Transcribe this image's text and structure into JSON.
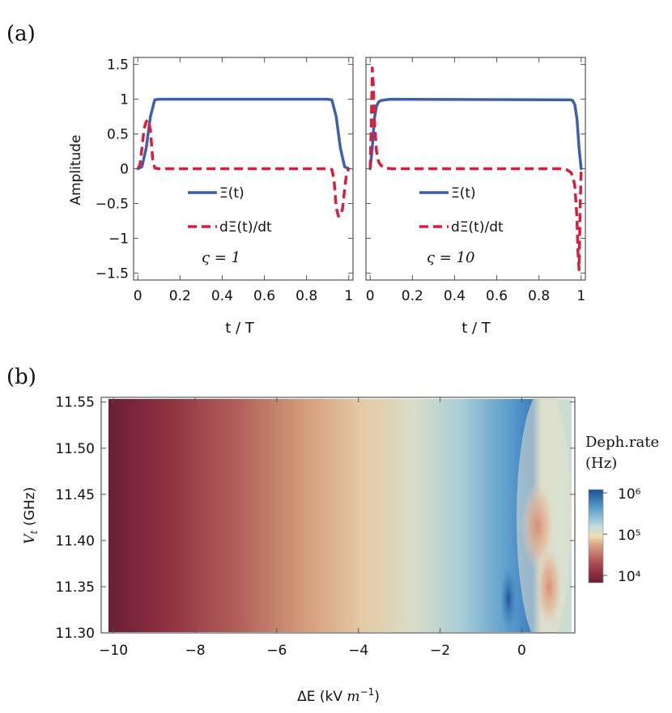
{
  "panel_labels": {
    "a": "(a)",
    "b": "(b)"
  },
  "chart_data": [
    {
      "type": "line",
      "panel": "(a) left",
      "xlabel": "t / T",
      "ylabel": "Amplitude",
      "xlim": [
        -0.02,
        1.02
      ],
      "ylim": [
        -1.6,
        1.6
      ],
      "x_ticks": [
        "0",
        "0.2",
        "0.4",
        "0.6",
        "0.8",
        "1"
      ],
      "y_ticks": [
        "1.5",
        "1",
        "0.5",
        "0",
        "−0.5",
        "−1",
        "−1.5"
      ],
      "annotation": "ς = 1",
      "legend_position": "center",
      "series": [
        {
          "name": "Ξ(t)",
          "color": "#3F5FAE",
          "style": "solid",
          "x": [
            0,
            0.02,
            0.04,
            0.06,
            0.08,
            0.1,
            0.9,
            0.92,
            0.94,
            0.96,
            0.98,
            1.0
          ],
          "y": [
            0,
            0.03,
            0.3,
            0.75,
            0.99,
            1.0,
            1.0,
            0.99,
            0.75,
            0.3,
            0.03,
            0
          ]
        },
        {
          "name": "dΞ(t)/dt",
          "color": "#D91E3D",
          "style": "dashed",
          "x": [
            0,
            0.01,
            0.02,
            0.03,
            0.04,
            0.05,
            0.06,
            0.07,
            0.08,
            0.1,
            0.9,
            0.92,
            0.93,
            0.94,
            0.95,
            0.96,
            0.97,
            0.98,
            0.99,
            1.0
          ],
          "y": [
            0,
            0.05,
            0.3,
            0.58,
            0.68,
            0.7,
            0.55,
            0.15,
            0.01,
            0,
            0,
            -0.01,
            -0.15,
            -0.55,
            -0.68,
            -0.68,
            -0.58,
            -0.3,
            -0.05,
            0
          ]
        }
      ]
    },
    {
      "type": "line",
      "panel": "(a) right",
      "xlabel": "t / T",
      "xlim": [
        -0.02,
        1.02
      ],
      "ylim": [
        -1.6,
        1.6
      ],
      "x_ticks": [
        "0",
        "0.2",
        "0.4",
        "0.6",
        "0.8",
        "1"
      ],
      "annotation": "ς = 10",
      "legend_position": "center",
      "series": [
        {
          "name": "Ξ(t)",
          "color": "#3F5FAE",
          "style": "solid",
          "x": [
            0,
            0.01,
            0.02,
            0.03,
            0.04,
            0.05,
            0.07,
            0.1,
            0.95,
            0.96,
            0.97,
            0.98,
            0.99,
            1.0
          ],
          "y": [
            0,
            0.3,
            0.72,
            0.9,
            0.96,
            0.98,
            0.99,
            1.0,
            0.99,
            0.98,
            0.92,
            0.72,
            0.3,
            0
          ]
        },
        {
          "name": "dΞ(t)/dt",
          "color": "#D91E3D",
          "style": "dashed",
          "x": [
            0,
            0.005,
            0.01,
            0.015,
            0.02,
            0.03,
            0.04,
            0.05,
            0.07,
            0.1,
            0.9,
            0.93,
            0.95,
            0.96,
            0.97,
            0.98,
            0.985,
            0.99,
            0.995,
            1.0
          ],
          "y": [
            0,
            0.6,
            1.45,
            1.2,
            0.7,
            0.25,
            0.1,
            0.05,
            0.01,
            0,
            0,
            -0.01,
            -0.05,
            -0.1,
            -0.25,
            -0.7,
            -1.2,
            -1.45,
            -0.6,
            0
          ]
        }
      ]
    },
    {
      "type": "heatmap",
      "panel": "(b)",
      "xlabel": "ΔE (kV m⁻¹)",
      "ylabel": "V_t (GHz)",
      "xlim": [
        -10.3,
        1.3
      ],
      "ylim": [
        11.3,
        11.555
      ],
      "x_ticks": [
        "−10",
        "−8",
        "−6",
        "−4",
        "−2",
        "0"
      ],
      "y_ticks": [
        "11.55",
        "11.50",
        "11.45",
        "11.40",
        "11.35",
        "11.30"
      ],
      "colorbar": {
        "title": "Deph.rate",
        "unit": "(Hz)",
        "scale": "log",
        "range": [
          5000,
          2000000
        ],
        "ticks": [
          "10⁶",
          "10⁵",
          "10⁴"
        ]
      }
    }
  ]
}
